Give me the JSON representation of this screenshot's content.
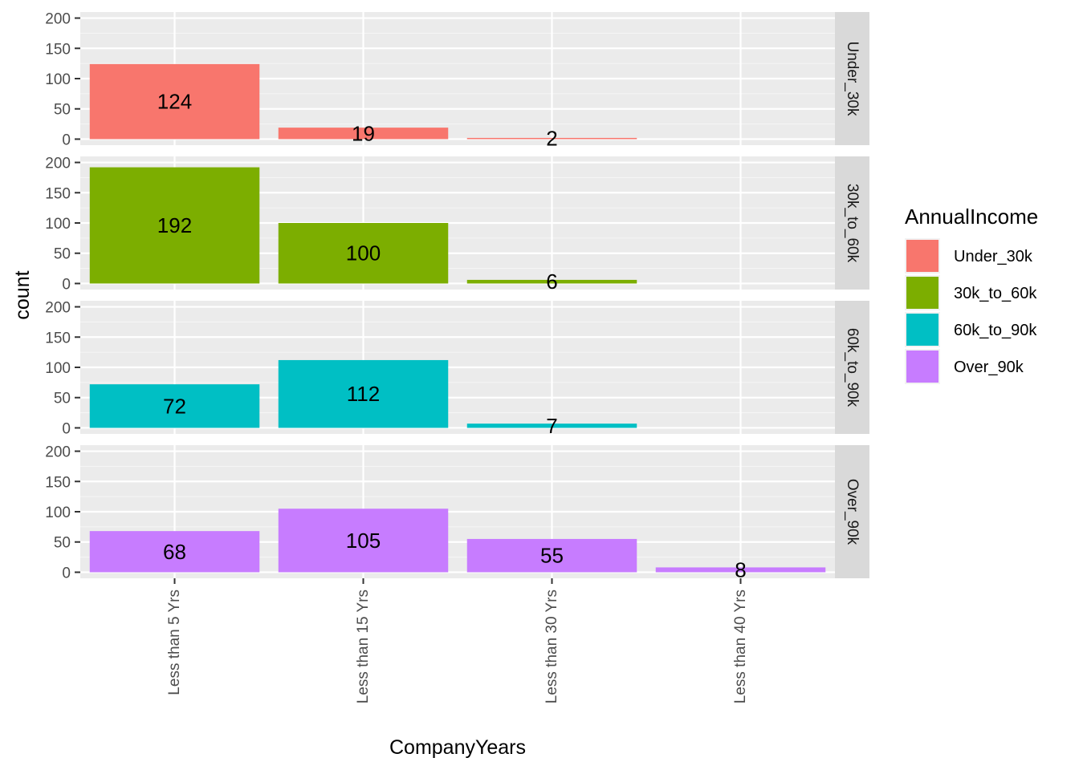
{
  "chart_data": {
    "type": "bar",
    "facet_by": "AnnualIncome",
    "xlabel": "CompanyYears",
    "ylabel": "count",
    "ylim": [
      0,
      200
    ],
    "y_ticks": [
      0,
      50,
      100,
      150,
      200
    ],
    "categories": [
      "Less than 5 Yrs",
      "Less than 15 Yrs",
      "Less than 30 Yrs",
      "Less than 40 Yrs"
    ],
    "legend": {
      "title": "AnnualIncome",
      "position": "right"
    },
    "grid": true,
    "series": [
      {
        "name": "Under_30k",
        "color": "#F8766D",
        "values": [
          124,
          19,
          2,
          null
        ]
      },
      {
        "name": "30k_to_60k",
        "color": "#7CAE00",
        "values": [
          192,
          100,
          6,
          null
        ]
      },
      {
        "name": "60k_to_90k",
        "color": "#00BFC4",
        "values": [
          72,
          112,
          7,
          null
        ]
      },
      {
        "name": "Over_90k",
        "color": "#C77CFF",
        "values": [
          68,
          105,
          55,
          8
        ]
      }
    ]
  }
}
